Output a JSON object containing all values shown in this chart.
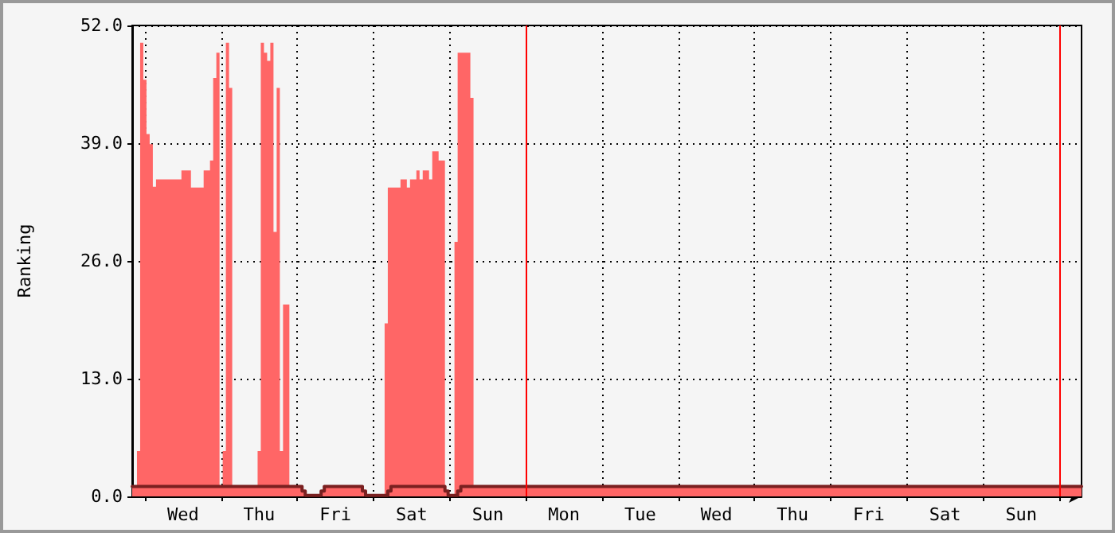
{
  "chart_data": {
    "type": "area",
    "ylabel": "Ranking",
    "ylim": [
      0,
      52
    ],
    "categories": [
      null,
      null,
      null,
      null,
      null,
      null,
      null,
      null,
      null,
      null,
      null,
      null,
      null,
      null,
      null,
      null,
      "Wed",
      null,
      null,
      null,
      null,
      null,
      null,
      null,
      null,
      null,
      null,
      null,
      null,
      null,
      null,
      null,
      null,
      null,
      null,
      null,
      null,
      null,
      null,
      null,
      "Thu",
      null,
      null,
      null,
      null,
      null,
      null,
      null,
      null,
      null,
      null,
      null,
      null,
      null,
      null,
      null,
      null,
      null,
      null,
      null,
      null,
      null,
      null,
      null,
      "Fri",
      null,
      null,
      null,
      null,
      null,
      null,
      null,
      null,
      null,
      null,
      null,
      null,
      null,
      null,
      null,
      null,
      null,
      null,
      null,
      null,
      null,
      null,
      null,
      "Sat",
      null,
      null,
      null,
      null,
      null,
      null,
      null,
      null,
      null,
      null,
      null,
      null,
      null,
      null,
      null,
      null,
      null,
      null,
      null,
      null,
      null,
      null,
      null,
      "Sun",
      null,
      null,
      null,
      null,
      null,
      null,
      null,
      null,
      null,
      null,
      null,
      null,
      null,
      null,
      null,
      null,
      null,
      null,
      null,
      null,
      null,
      null,
      null,
      "Mon",
      null,
      null,
      null,
      null,
      null,
      null,
      null,
      null,
      null,
      null,
      null,
      null,
      null,
      null,
      null,
      null,
      null,
      null,
      null,
      null,
      null,
      null,
      null,
      "Tue",
      null,
      null,
      null,
      null,
      null,
      null,
      null,
      null,
      null,
      null,
      null,
      null,
      null,
      null,
      null,
      null,
      null,
      null,
      null,
      null,
      null,
      null,
      null,
      "Wed",
      null,
      null,
      null,
      null,
      null,
      null,
      null,
      null,
      null,
      null,
      null,
      null,
      null,
      null,
      null,
      null,
      null,
      null,
      null,
      null,
      null,
      null,
      null,
      "Thu",
      null,
      null,
      null,
      null,
      null,
      null,
      null,
      null,
      null,
      null,
      null,
      null,
      null,
      null,
      null,
      null,
      null,
      null,
      null,
      null,
      null,
      null,
      null,
      "Fri",
      null,
      null,
      null,
      null,
      null,
      null,
      null,
      null,
      null,
      null,
      null,
      null,
      null,
      null,
      null,
      null,
      null,
      null,
      null,
      null,
      null,
      null,
      null,
      "Sat",
      null,
      null,
      null,
      null,
      null,
      null,
      null,
      null,
      null,
      null,
      null,
      null,
      null,
      null,
      null,
      null,
      null,
      null,
      null,
      null,
      null,
      null,
      null,
      "Sun",
      null,
      null,
      null,
      null,
      null,
      null,
      null,
      null,
      null,
      null,
      null,
      null,
      null,
      null,
      null,
      null,
      null,
      null,
      null
    ],
    "yticks": [
      {
        "value": 0,
        "label": "0.0"
      },
      {
        "value": 13,
        "label": "13.0"
      },
      {
        "value": 26,
        "label": "26.0"
      },
      {
        "value": 39,
        "label": "39.0"
      },
      {
        "value": 52,
        "label": "52.0"
      }
    ],
    "grid": true,
    "marker": "none",
    "line_style": "solid",
    "series": [
      {
        "type": "area",
        "color": "#ff6666",
        "values": [
          1.1,
          1.1,
          5,
          50.1,
          46,
          40,
          38.9,
          34.2,
          35,
          35,
          35,
          35,
          35,
          35,
          35,
          35,
          36,
          36,
          36,
          34.1,
          34.1,
          34.1,
          34.1,
          36,
          36,
          37.1,
          46.2,
          49,
          1.1,
          5,
          50.1,
          45.1,
          1.1,
          1.1,
          1.1,
          1.1,
          1.1,
          1.1,
          1.1,
          1.1,
          5,
          50.1,
          49,
          48.1,
          50.1,
          29.2,
          45.1,
          5,
          21.2,
          21.2,
          1.1,
          1.1,
          1.1,
          1.1,
          0.6,
          0.1,
          0.1,
          0.1,
          0.1,
          0.1,
          0.6,
          1.1,
          1.1,
          1.1,
          1.1,
          1.1,
          1.1,
          1.1,
          1.1,
          1.1,
          1.1,
          1.1,
          1.1,
          0.6,
          0.1,
          0.1,
          0.1,
          0.1,
          0.1,
          0.1,
          19.1,
          34.1,
          34.1,
          34.1,
          34.1,
          35,
          35,
          34.1,
          35,
          35,
          36,
          35,
          36,
          36,
          35,
          38.1,
          38.1,
          37.1,
          37.1,
          0.6,
          0.1,
          0.1,
          28.1,
          49,
          49,
          49,
          49,
          44,
          1.1,
          1.1,
          1.1,
          1.1,
          1.1,
          1.1,
          1.1,
          1.1,
          1.1,
          1.1,
          1.1,
          1.1,
          1.1,
          1.1,
          1.1,
          1.1,
          1.1,
          1.1,
          1.1,
          1.1,
          1.1,
          1.1,
          1.1,
          1.1,
          1.1,
          1.1,
          1.1,
          1.1,
          1.1,
          1.1,
          1.1,
          1.1,
          1.1,
          1.1,
          1.1,
          1.1,
          1.1,
          1.1,
          1.1,
          1.1,
          1.1,
          1.1,
          1.1,
          1.1,
          1.1,
          1.1,
          1.1,
          1.1,
          1.1,
          1.1,
          1.1,
          1.1,
          1.1,
          1.1,
          1.1,
          1.1,
          1.1,
          1.1,
          1.1,
          1.1,
          1.1,
          1.1,
          1.1,
          1.1,
          1.1,
          1.1,
          1.1,
          1.1,
          1.1,
          1.1,
          1.1,
          1.1,
          1.1,
          1.1,
          1.1,
          1.1,
          1.1,
          1.1,
          1.1,
          1.1,
          1.1,
          1.1,
          1.1,
          1.1,
          1.1,
          1.1,
          1.1,
          1.1,
          1.1,
          1.1,
          1.1,
          1.1,
          1.1,
          1.1,
          1.1,
          1.1,
          1.1,
          1.1,
          1.1,
          1.1,
          1.1,
          1.1,
          1.1,
          1.1,
          1.1,
          1.1,
          1.1,
          1.1,
          1.1,
          1.1,
          1.1,
          1.1,
          1.1,
          1.1,
          1.1,
          1.1,
          1.1,
          1.1,
          1.1,
          1.1,
          1.1,
          1.1,
          1.1,
          1.1,
          1.1,
          1.1,
          1.1,
          1.1,
          1.1,
          1.1,
          1.1,
          1.1,
          1.1,
          1.1,
          1.1,
          1.1,
          1.1,
          1.1,
          1.1,
          1.1,
          1.1,
          1.1,
          1.1,
          1.1,
          1.1,
          1.1,
          1.1,
          1.1,
          1.1,
          1.1,
          1.1,
          1.1,
          1.1,
          1.1,
          1.1,
          1.1,
          1.1,
          1.1,
          1.1,
          1.1,
          1.1,
          1.1,
          1.1,
          1.1,
          1.1,
          1.1,
          1.1,
          1.1,
          1.1,
          1.1,
          1.1,
          1.1,
          1.1,
          1.1,
          1.1,
          1.1,
          1.1,
          1.1,
          1.1,
          1.1,
          1.1,
          1.1,
          1.1,
          1.1,
          1.1,
          1.1,
          1.1,
          1.1,
          1.1,
          1.1,
          1.1,
          1.1
        ]
      },
      {
        "type": "line",
        "color": "#7a2020",
        "values": [
          1.1,
          1.1,
          1.1,
          1.1,
          1.1,
          1.1,
          1.1,
          1.1,
          1.1,
          1.1,
          1.1,
          1.1,
          1.1,
          1.1,
          1.1,
          1.1,
          1.1,
          1.1,
          1.1,
          1.1,
          1.1,
          1.1,
          1.1,
          1.1,
          1.1,
          1.1,
          1.1,
          1.1,
          1.1,
          1.1,
          1.1,
          1.1,
          1.1,
          1.1,
          1.1,
          1.1,
          1.1,
          1.1,
          1.1,
          1.1,
          1.1,
          1.1,
          1.1,
          1.1,
          1.1,
          1.1,
          1.1,
          1.1,
          1.1,
          1.1,
          1.1,
          1.1,
          1.1,
          1.1,
          0.6,
          0.1,
          0.1,
          0.1,
          0.1,
          0.1,
          0.6,
          1.1,
          1.1,
          1.1,
          1.1,
          1.1,
          1.1,
          1.1,
          1.1,
          1.1,
          1.1,
          1.1,
          1.1,
          0.6,
          0.1,
          0.1,
          0.1,
          0.1,
          0.1,
          0.1,
          0.1,
          0.6,
          1.1,
          1.1,
          1.1,
          1.1,
          1.1,
          1.1,
          1.1,
          1.1,
          1.1,
          1.1,
          1.1,
          1.1,
          1.1,
          1.1,
          1.1,
          1.1,
          1.1,
          0.6,
          0.1,
          0.1,
          0.1,
          0.6,
          1.1,
          1.1,
          1.1,
          1.1,
          1.1,
          1.1,
          1.1,
          1.1,
          1.1,
          1.1,
          1.1,
          1.1,
          1.1,
          1.1,
          1.1,
          1.1,
          1.1,
          1.1,
          1.1,
          1.1,
          1.1,
          1.1,
          1.1,
          1.1,
          1.1,
          1.1,
          1.1,
          1.1,
          1.1,
          1.1,
          1.1,
          1.1,
          1.1,
          1.1,
          1.1,
          1.1,
          1.1,
          1.1,
          1.1,
          1.1,
          1.1,
          1.1,
          1.1,
          1.1,
          1.1,
          1.1,
          1.1,
          1.1,
          1.1,
          1.1,
          1.1,
          1.1,
          1.1,
          1.1,
          1.1,
          1.1,
          1.1,
          1.1,
          1.1,
          1.1,
          1.1,
          1.1,
          1.1,
          1.1,
          1.1,
          1.1,
          1.1,
          1.1,
          1.1,
          1.1,
          1.1,
          1.1,
          1.1,
          1.1,
          1.1,
          1.1,
          1.1,
          1.1,
          1.1,
          1.1,
          1.1,
          1.1,
          1.1,
          1.1,
          1.1,
          1.1,
          1.1,
          1.1,
          1.1,
          1.1,
          1.1,
          1.1,
          1.1,
          1.1,
          1.1,
          1.1,
          1.1,
          1.1,
          1.1,
          1.1,
          1.1,
          1.1,
          1.1,
          1.1,
          1.1,
          1.1,
          1.1,
          1.1,
          1.1,
          1.1,
          1.1,
          1.1,
          1.1,
          1.1,
          1.1,
          1.1,
          1.1,
          1.1,
          1.1,
          1.1,
          1.1,
          1.1,
          1.1,
          1.1,
          1.1,
          1.1,
          1.1,
          1.1,
          1.1,
          1.1,
          1.1,
          1.1,
          1.1,
          1.1,
          1.1,
          1.1,
          1.1,
          1.1,
          1.1,
          1.1,
          1.1,
          1.1,
          1.1,
          1.1,
          1.1,
          1.1,
          1.1,
          1.1,
          1.1,
          1.1,
          1.1,
          1.1,
          1.1,
          1.1,
          1.1,
          1.1,
          1.1,
          1.1,
          1.1,
          1.1,
          1.1,
          1.1,
          1.1,
          1.1,
          1.1,
          1.1,
          1.1,
          1.1,
          1.1,
          1.1,
          1.1,
          1.1,
          1.1,
          1.1,
          1.1,
          1.1,
          1.1,
          1.1,
          1.1,
          1.1,
          1.1,
          1.1,
          1.1,
          1.1,
          1.1,
          1.1,
          1.1,
          1.1,
          1.1,
          1.1,
          1.1,
          1.1,
          1.1,
          1.1,
          1.1,
          1.1
        ]
      }
    ]
  }
}
